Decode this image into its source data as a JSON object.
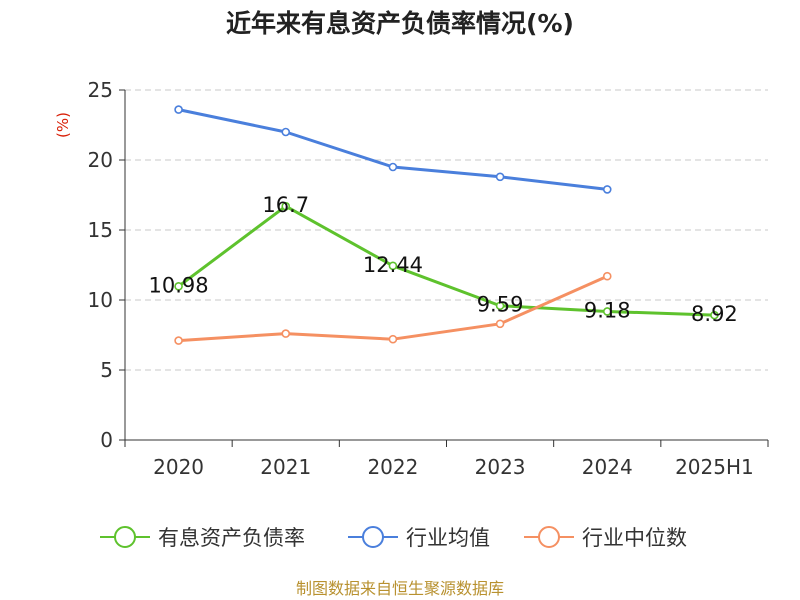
{
  "chart_data": {
    "type": "line",
    "title": "近年来有息资产负债率情况(%)",
    "ylabel": "(%)",
    "xlabel": "",
    "categories": [
      "2020",
      "2021",
      "2022",
      "2023",
      "2024",
      "2025H1"
    ],
    "ylim": [
      0,
      25
    ],
    "yticks": [
      0,
      5,
      10,
      15,
      20,
      25
    ],
    "grid": true,
    "legend_position": "bottom",
    "series": [
      {
        "name": "有息资产负债率",
        "color": "#5ec22d",
        "values": [
          10.98,
          16.7,
          12.44,
          9.59,
          9.18,
          8.92
        ],
        "labels": [
          "10.98",
          "16.7",
          "12.44",
          "9.59",
          "9.18",
          "8.92"
        ]
      },
      {
        "name": "行业均值",
        "color": "#4a7fdc",
        "values": [
          23.6,
          22.0,
          19.5,
          18.8,
          17.9,
          null
        ]
      },
      {
        "name": "行业中位数",
        "color": "#f59062",
        "values": [
          7.1,
          7.6,
          7.2,
          8.3,
          11.7,
          null
        ]
      }
    ]
  },
  "footer": {
    "source": "制图数据来自恒生聚源数据库"
  },
  "colors": {
    "title": "#222222",
    "ylabel": "#d81e06",
    "axis": "#333333",
    "grid": "#c8c8c8",
    "footer": "#b8912f"
  }
}
